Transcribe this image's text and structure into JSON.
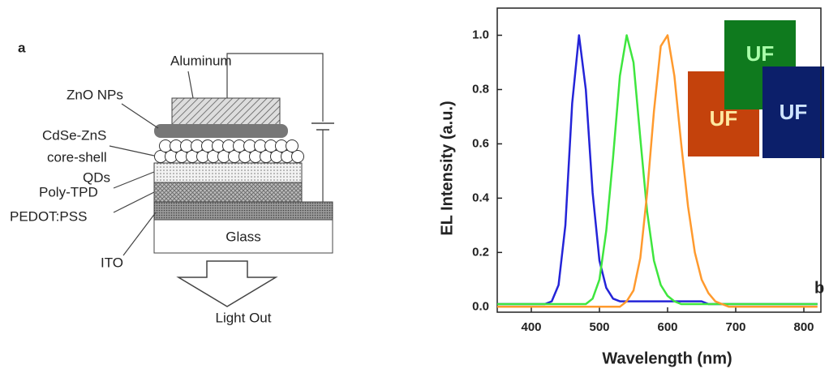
{
  "diagram": {
    "panel_label": "a",
    "aluminum": "Aluminum",
    "zno": "ZnO NPs",
    "qd_label": [
      "CdSe-ZnS",
      "core-shell",
      "QDs"
    ],
    "poly_tpd": "Poly-TPD",
    "pedot": "PEDOT:PSS",
    "ito": "ITO",
    "glass": "Glass",
    "light_out": "Light Out"
  },
  "chart_data": {
    "type": "line",
    "panel_label": "b",
    "xlabel": "Wavelength (nm)",
    "ylabel": "EL Intensity (a.u.)",
    "inset_logo": "UF",
    "x": [
      350,
      360,
      370,
      380,
      390,
      400,
      410,
      420,
      430,
      440,
      450,
      460,
      470,
      480,
      490,
      500,
      510,
      520,
      530,
      540,
      550,
      560,
      570,
      580,
      590,
      600,
      610,
      620,
      630,
      640,
      650,
      660,
      670,
      680,
      690,
      700,
      710,
      720,
      730,
      740,
      750,
      760,
      770,
      780,
      790,
      800,
      810,
      820
    ],
    "series": [
      {
        "color": "#2424d8",
        "values": [
          0.01,
          0.01,
          0.01,
          0.01,
          0.01,
          0.01,
          0.01,
          0.01,
          0.02,
          0.08,
          0.3,
          0.75,
          1.0,
          0.8,
          0.42,
          0.17,
          0.07,
          0.03,
          0.02,
          0.02,
          0.02,
          0.02,
          0.02,
          0.02,
          0.02,
          0.02,
          0.02,
          0.02,
          0.02,
          0.02,
          0.02,
          0.01,
          0.01,
          0.01,
          0.01,
          0.01,
          0.01,
          0.01,
          0.01,
          0.01,
          0.01,
          0.01,
          0.01,
          0.01,
          0.01,
          0.01,
          0.01,
          0.01
        ]
      },
      {
        "color": "#3ee63e",
        "values": [
          0.01,
          0.01,
          0.01,
          0.01,
          0.01,
          0.01,
          0.01,
          0.01,
          0.01,
          0.01,
          0.01,
          0.01,
          0.01,
          0.01,
          0.03,
          0.1,
          0.28,
          0.55,
          0.85,
          1.0,
          0.9,
          0.62,
          0.35,
          0.17,
          0.08,
          0.04,
          0.02,
          0.01,
          0.01,
          0.01,
          0.01,
          0.01,
          0.01,
          0.01,
          0.01,
          0.01,
          0.01,
          0.01,
          0.01,
          0.01,
          0.01,
          0.01,
          0.01,
          0.01,
          0.01,
          0.01,
          0.01,
          0.01
        ]
      },
      {
        "color": "#ff9a2e",
        "values": [
          0,
          0,
          0,
          0,
          0,
          0,
          0,
          0,
          0,
          0,
          0,
          0,
          0,
          0,
          0,
          0,
          0,
          0,
          0,
          0.02,
          0.06,
          0.18,
          0.42,
          0.72,
          0.96,
          1.0,
          0.85,
          0.6,
          0.37,
          0.2,
          0.1,
          0.05,
          0.02,
          0.01,
          0,
          0,
          0,
          0,
          0,
          0,
          0,
          0,
          0,
          0,
          0,
          0,
          0,
          0
        ]
      }
    ],
    "xlim": [
      350,
      825
    ],
    "ylim": [
      -0.02,
      1.1
    ],
    "xticks": [
      400,
      500,
      600,
      700,
      800
    ],
    "yticks": [
      {
        "value": 0,
        "label": "0.0"
      },
      0.2,
      0.4,
      0.6,
      0.8,
      {
        "value": 1,
        "label": "1.0"
      }
    ]
  }
}
